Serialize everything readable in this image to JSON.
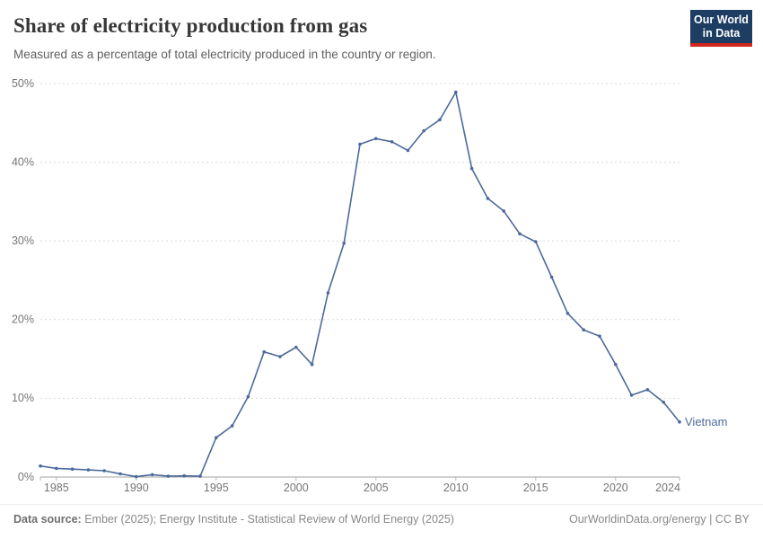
{
  "header": {
    "title": "Share of electricity production from gas",
    "subtitle": "Measured as a percentage of total electricity produced in the country or region.",
    "logo": {
      "line1": "Our World",
      "line2": "in Data"
    }
  },
  "chart_data": {
    "type": "line",
    "title": "Share of electricity production from gas",
    "xlabel": "",
    "ylabel": "",
    "xlim": [
      1984,
      2024
    ],
    "ylim": [
      0,
      50
    ],
    "grid": "horizontal-dashed",
    "legend_position": "end-of-line-label",
    "xticks": [
      1985,
      1990,
      1995,
      2000,
      2005,
      2010,
      2015,
      2020,
      2024
    ],
    "xtick_labels": [
      "1985",
      "1990",
      "1995",
      "2000",
      "2005",
      "2010",
      "2015",
      "2020",
      "2024"
    ],
    "yticks": [
      0,
      10,
      20,
      30,
      40,
      50
    ],
    "ytick_labels": [
      "0%",
      "10%",
      "20%",
      "30%",
      "40%",
      "50%"
    ],
    "line_color": "#4c6a9c",
    "series": [
      {
        "name": "Vietnam",
        "x": [
          1984,
          1985,
          1986,
          1987,
          1988,
          1989,
          1990,
          1991,
          1992,
          1993,
          1994,
          1995,
          1996,
          1997,
          1998,
          1999,
          2000,
          2001,
          2002,
          2003,
          2004,
          2005,
          2006,
          2007,
          2008,
          2009,
          2010,
          2011,
          2012,
          2013,
          2014,
          2015,
          2016,
          2017,
          2018,
          2019,
          2020,
          2021,
          2022,
          2023,
          2024
        ],
        "values": [
          1.4,
          1.1,
          1.0,
          0.9,
          0.8,
          0.4,
          0.05,
          0.3,
          0.1,
          0.15,
          0.1,
          5.0,
          6.5,
          10.2,
          15.9,
          15.3,
          16.5,
          14.3,
          23.4,
          29.7,
          42.3,
          43.0,
          42.6,
          41.5,
          44.0,
          45.4,
          48.9,
          39.2,
          35.4,
          33.8,
          30.9,
          29.9,
          25.4,
          20.8,
          18.7,
          17.9,
          14.3,
          10.4,
          11.1,
          9.5,
          7.0
        ]
      }
    ],
    "entity_label": "Vietnam"
  },
  "footer": {
    "source_label": "Data source:",
    "source_text": " Ember (2025); Energy Institute - Statistical Review of World Energy (2025)",
    "credit": "OurWorldinData.org/energy | CC BY"
  }
}
